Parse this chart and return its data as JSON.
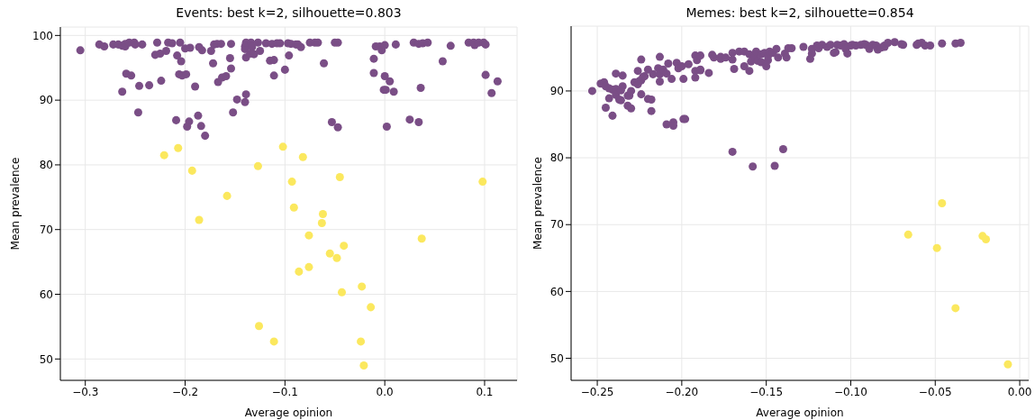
{
  "chart_data": [
    {
      "type": "scatter",
      "title": "Events: best k=2, silhouette=0.803",
      "xlabel": "Average opinion",
      "ylabel": "Mean prevalence",
      "xlim": [
        -0.325,
        0.1325
      ],
      "ylim": [
        46.7,
        101.3
      ],
      "xticks": [
        {
          "value": -0.3,
          "label": "−0.3"
        },
        {
          "value": -0.2,
          "label": "−0.2"
        },
        {
          "value": -0.1,
          "label": "−0.1"
        },
        {
          "value": 0,
          "label": "0.0"
        },
        {
          "value": 0.1,
          "label": "0.1"
        }
      ],
      "yticks": [
        50,
        60,
        70,
        80,
        90,
        100
      ],
      "grid": true,
      "marker": "circle",
      "legend": false,
      "series": [
        {
          "color": "#7a4e86",
          "x": [
            -0.305,
            -0.286,
            -0.281,
            -0.272,
            -0.267,
            -0.263,
            -0.26,
            -0.26,
            -0.256,
            -0.251,
            -0.25,
            -0.243,
            -0.259,
            -0.254,
            -0.263,
            -0.246,
            -0.236,
            -0.247,
            -0.23,
            -0.225,
            -0.224,
            -0.219,
            -0.228,
            -0.217,
            -0.213,
            -0.205,
            -0.208,
            -0.204,
            -0.206,
            -0.203,
            -0.199,
            -0.2,
            -0.195,
            -0.186,
            -0.183,
            -0.19,
            -0.209,
            -0.196,
            -0.198,
            -0.187,
            -0.184,
            -0.18,
            -0.174,
            -0.172,
            -0.171,
            -0.168,
            -0.164,
            -0.167,
            -0.163,
            -0.159,
            -0.154,
            -0.155,
            -0.154,
            -0.148,
            -0.152,
            -0.14,
            -0.14,
            -0.139,
            -0.14,
            -0.139,
            -0.139,
            -0.134,
            -0.133,
            -0.135,
            -0.131,
            -0.127,
            -0.125,
            -0.119,
            -0.115,
            -0.111,
            -0.111,
            -0.113,
            -0.108,
            -0.105,
            -0.1,
            -0.096,
            -0.097,
            -0.094,
            -0.089,
            -0.084,
            -0.087,
            -0.075,
            -0.07,
            -0.067,
            -0.061,
            -0.053,
            -0.047,
            -0.05,
            -0.047,
            -0.011,
            -0.011,
            -0.009,
            -0.005,
            -0.003,
            0,
            0,
            -0.001,
            0.001,
            0.002,
            0.005,
            0.009,
            0.011,
            0.025,
            0.029,
            0.034,
            0.034,
            0.036,
            0.038,
            0.043,
            0.058,
            0.066,
            0.084,
            0.089,
            0.09,
            0.094,
            0.099,
            0.101,
            0.101,
            0.107,
            0.113
          ],
          "values": [
            97.7,
            98.6,
            98.3,
            98.6,
            98.6,
            98.4,
            98.7,
            98.3,
            98.9,
            98.9,
            98.6,
            98.6,
            94.1,
            93.8,
            91.3,
            92.2,
            92.3,
            88.1,
            97,
            97.2,
            93,
            97.6,
            98.9,
            98.9,
            98.8,
            98.9,
            96.9,
            96,
            94,
            93.8,
            94,
            98,
            98.1,
            98.2,
            97.7,
            92.1,
            86.9,
            86.7,
            85.9,
            87.6,
            86,
            84.5,
            97.6,
            95.7,
            98.6,
            98.7,
            98.7,
            92.8,
            93.5,
            93.7,
            98.7,
            96.5,
            94.9,
            90.1,
            88.1,
            98.3,
            97.9,
            96.6,
            89.7,
            90.9,
            98.9,
            98.9,
            98.2,
            97.2,
            97.1,
            98.9,
            97.6,
            98.8,
            96.1,
            96.2,
            93.8,
            98.7,
            98.8,
            98.8,
            94.7,
            96.9,
            98.8,
            98.7,
            98.6,
            98.2,
            98.6,
            98.9,
            98.9,
            98.9,
            95.7,
            86.6,
            85.8,
            98.9,
            98.9,
            96.4,
            94.2,
            98.3,
            98.3,
            97.7,
            98.5,
            93.7,
            91.6,
            91.6,
            85.9,
            92.9,
            91.3,
            98.6,
            87,
            98.9,
            98.7,
            86.6,
            91.9,
            98.8,
            98.9,
            96,
            98.4,
            98.9,
            98.9,
            98.5,
            98.9,
            98.9,
            98.6,
            93.9,
            91.1,
            92.9
          ]
        },
        {
          "color": "#fbe85e",
          "x": [
            -0.221,
            -0.207,
            -0.193,
            -0.186,
            -0.158,
            -0.127,
            -0.126,
            -0.111,
            -0.102,
            -0.093,
            -0.091,
            -0.086,
            -0.082,
            -0.076,
            -0.076,
            -0.063,
            -0.062,
            -0.055,
            -0.048,
            -0.045,
            -0.043,
            -0.041,
            -0.024,
            -0.023,
            -0.021,
            -0.014,
            0.037,
            0.098
          ],
          "values": [
            81.5,
            82.6,
            79.1,
            71.5,
            75.2,
            79.8,
            55.1,
            52.7,
            82.8,
            77.4,
            73.4,
            63.5,
            81.2,
            64.2,
            69.1,
            71,
            72.4,
            66.3,
            65.6,
            78.1,
            60.3,
            67.5,
            52.7,
            61.2,
            49,
            58,
            68.6,
            77.4
          ]
        }
      ]
    },
    {
      "type": "scatter",
      "title": "Memes: best k=2, silhouette=0.854",
      "xlabel": "Average opinion",
      "ylabel": "Mean prevalence",
      "xlim": [
        -0.2655,
        0.0053
      ],
      "ylim": [
        46.7,
        99.7
      ],
      "xticks": [
        {
          "value": -0.25,
          "label": "−0.25"
        },
        {
          "value": -0.2,
          "label": "−0.20"
        },
        {
          "value": -0.15,
          "label": "−0.15"
        },
        {
          "value": -0.1,
          "label": "−0.10"
        },
        {
          "value": -0.05,
          "label": "−0.05"
        },
        {
          "value": 0,
          "label": "0.00"
        }
      ],
      "yticks": [
        50,
        60,
        70,
        80,
        90
      ],
      "grid": true,
      "marker": "circle",
      "legend": false,
      "series": [
        {
          "color": "#7a4e86",
          "x": [
            -0.253,
            -0.248,
            -0.246,
            -0.245,
            -0.243,
            -0.241,
            -0.239,
            -0.245,
            -0.241,
            -0.243,
            -0.239,
            -0.237,
            -0.236,
            -0.236,
            -0.235,
            -0.239,
            -0.235,
            -0.232,
            -0.23,
            -0.232,
            -0.231,
            -0.23,
            -0.228,
            -0.226,
            -0.225,
            -0.224,
            -0.223,
            -0.222,
            -0.22,
            -0.226,
            -0.224,
            -0.224,
            -0.22,
            -0.218,
            -0.218,
            -0.217,
            -0.214,
            -0.213,
            -0.213,
            -0.213,
            -0.211,
            -0.209,
            -0.208,
            -0.206,
            -0.209,
            -0.205,
            -0.205,
            -0.203,
            -0.202,
            -0.2,
            -0.199,
            -0.198,
            -0.199,
            -0.196,
            -0.192,
            -0.191,
            -0.192,
            -0.192,
            -0.189,
            -0.189,
            -0.189,
            -0.184,
            -0.182,
            -0.181,
            -0.177,
            -0.177,
            -0.174,
            -0.17,
            -0.17,
            -0.169,
            -0.17,
            -0.166,
            -0.163,
            -0.163,
            -0.16,
            -0.16,
            -0.159,
            -0.158,
            -0.157,
            -0.156,
            -0.155,
            -0.153,
            -0.153,
            -0.151,
            -0.15,
            -0.149,
            -0.149,
            -0.148,
            -0.146,
            -0.145,
            -0.144,
            -0.143,
            -0.14,
            -0.139,
            -0.138,
            -0.137,
            -0.135,
            -0.128,
            -0.124,
            -0.123,
            -0.123,
            -0.12,
            -0.119,
            -0.117,
            -0.114,
            -0.112,
            -0.11,
            -0.109,
            -0.108,
            -0.106,
            -0.104,
            -0.103,
            -0.102,
            -0.1,
            -0.099,
            -0.097,
            -0.094,
            -0.092,
            -0.091,
            -0.089,
            -0.087,
            -0.085,
            -0.084,
            -0.082,
            -0.08,
            -0.08,
            -0.078,
            -0.074,
            -0.07,
            -0.069,
            -0.061,
            -0.06,
            -0.058,
            -0.056,
            -0.053,
            -0.046,
            -0.038,
            -0.035
          ],
          "values": [
            90,
            91.1,
            91.3,
            90.7,
            90.4,
            90.2,
            90.3,
            87.5,
            86.3,
            88.9,
            89.4,
            88.7,
            88.6,
            90.1,
            90.7,
            92.6,
            92.3,
            87.8,
            87.4,
            89.3,
            89.3,
            90,
            91.3,
            91,
            91.5,
            91.6,
            92.1,
            92.2,
            93.2,
            93,
            94.7,
            89.5,
            88.8,
            88.7,
            87,
            92.5,
            93.4,
            95.1,
            91.4,
            92.5,
            93.2,
            92.6,
            94.1,
            91.8,
            85,
            85.3,
            84.8,
            94.2,
            93.4,
            93.7,
            85.8,
            85.8,
            91.8,
            94,
            95.3,
            94.6,
            93,
            92,
            95.3,
            93.2,
            93.1,
            92.7,
            95.4,
            95,
            95.1,
            94.8,
            95,
            95.7,
            94.7,
            93.3,
            80.9,
            95.9,
            95.9,
            93.7,
            95.5,
            93,
            94.4,
            78.7,
            95.1,
            95.9,
            94.5,
            94.3,
            95.5,
            95.7,
            93.7,
            94.6,
            95.2,
            95.9,
            95.7,
            78.8,
            96.3,
            95,
            81.3,
            95.6,
            95,
            96.4,
            96.4,
            96.6,
            94.8,
            95.6,
            96.3,
            96.8,
            96.4,
            96.9,
            96.6,
            96.9,
            95.7,
            95.8,
            96.9,
            96.8,
            97,
            96.3,
            95.6,
            96.8,
            96.9,
            96.8,
            96.9,
            97,
            96.9,
            96.3,
            96.9,
            96.8,
            96.2,
            96.5,
            96.6,
            96.8,
            97.2,
            97.3,
            97,
            96.9,
            96.9,
            97.1,
            97.2,
            96.8,
            96.8,
            97.1,
            97.1,
            97.2
          ]
        },
        {
          "color": "#fbe85e",
          "x": [
            -0.066,
            -0.046,
            -0.049,
            -0.038,
            -0.022,
            -0.02,
            -0.007
          ],
          "values": [
            68.5,
            73.2,
            66.5,
            57.5,
            68.3,
            67.8,
            49.1
          ]
        }
      ]
    }
  ]
}
